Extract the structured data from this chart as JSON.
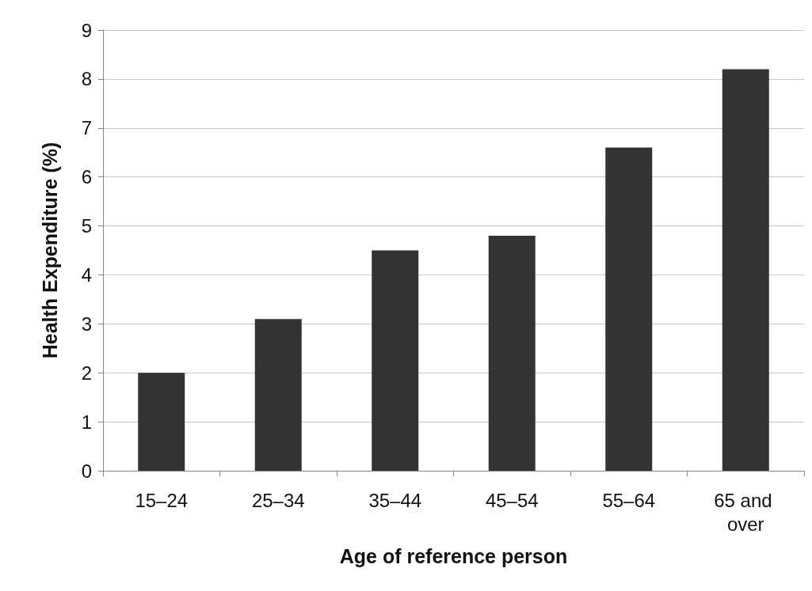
{
  "chart_data": {
    "type": "bar",
    "xlabel": "Age of reference person",
    "ylabel": "Health Expenditure (%)",
    "categories": [
      "15–24",
      "25–34",
      "35–44",
      "45–54",
      "55–64",
      "65 and over"
    ],
    "values": [
      2.0,
      3.1,
      4.5,
      4.8,
      6.6,
      8.2
    ],
    "color": "#333333",
    "ylim": [
      0,
      9
    ],
    "yticks": [
      0,
      1,
      2,
      3,
      4,
      5,
      6,
      7,
      8,
      9
    ],
    "grid": "y"
  }
}
